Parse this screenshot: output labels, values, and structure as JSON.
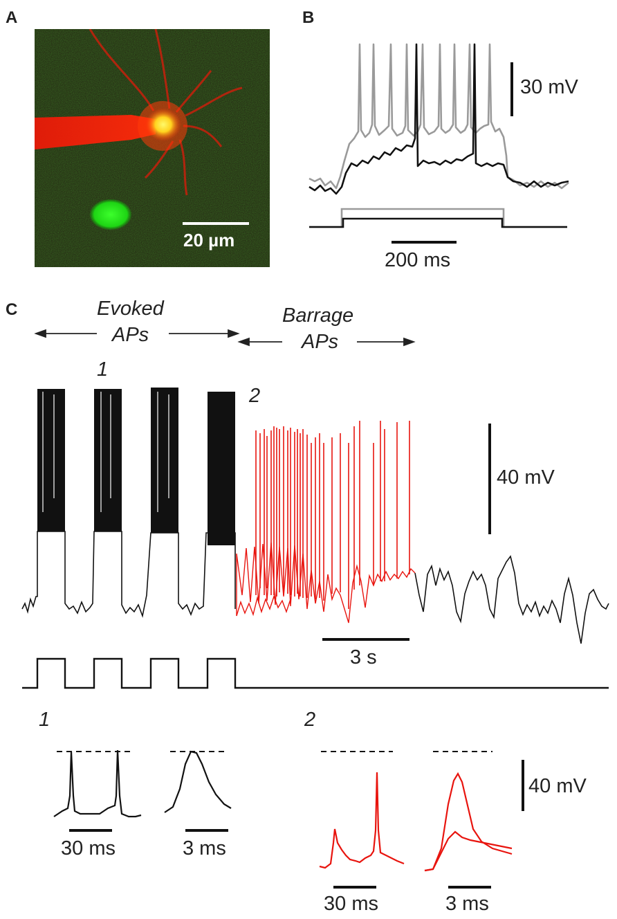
{
  "panels": {
    "A": {
      "letter": "A",
      "scale_bar_label": "20 µm"
    },
    "B": {
      "letter": "B",
      "v_scale_label": "30 mV",
      "t_scale_label": "200 ms"
    },
    "C": {
      "letter": "C",
      "evoked_line1": "Evoked",
      "evoked_line2": "APs",
      "barrage_line1": "Barrage",
      "barrage_line2": "APs",
      "marker_1": "1",
      "marker_2": "2",
      "v_scale_label": "40 mV",
      "t_scale_label": "3 s"
    },
    "insets": {
      "label_1": "1",
      "label_2": "2",
      "scale_30ms_1": "30 ms",
      "scale_3ms_1": "3 ms",
      "scale_30ms_2": "30 ms",
      "scale_3ms_2": "3 ms",
      "v_scale_label": "40 mV"
    }
  },
  "colors": {
    "trace_black": "#111111",
    "trace_grey": "#9a9a9a",
    "trace_red": "#e8140e",
    "cell_red": "#e8200c",
    "cell_green": "#1ed414",
    "soma_yellow": "#fff03c",
    "background_micro": "#2a2a18"
  }
}
